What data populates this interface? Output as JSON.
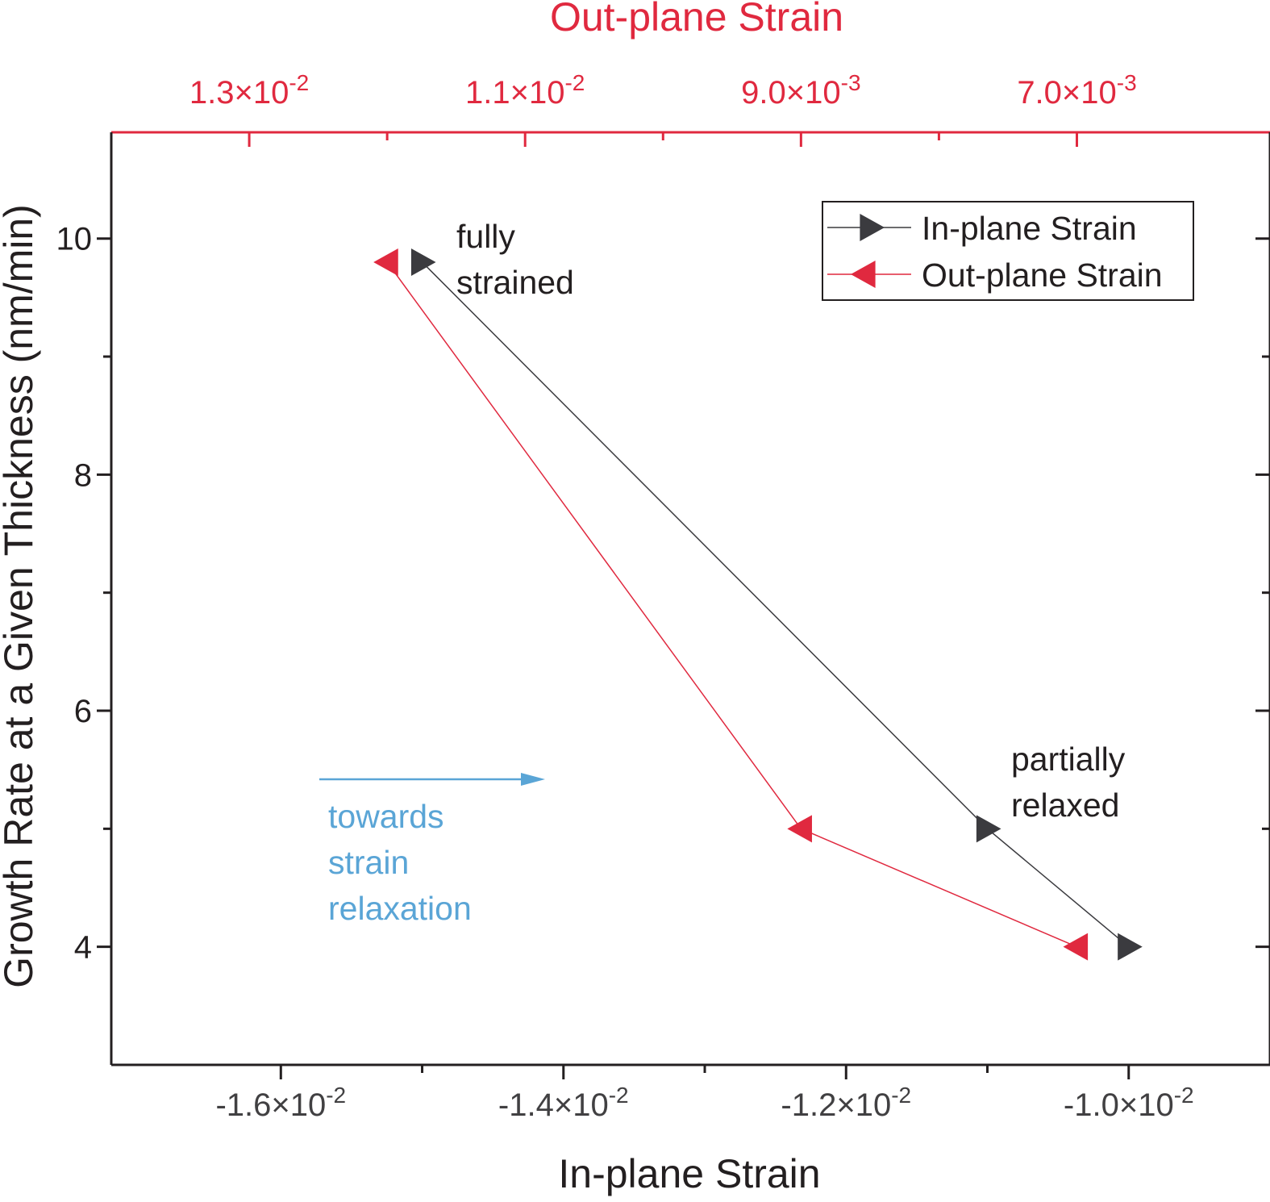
{
  "chart_data": {
    "type": "line",
    "y": {
      "label": "Growth Rate at a Given Thickness (nm/min)",
      "range": [
        3.0,
        10.9
      ],
      "ticks": [
        4,
        6,
        8,
        10
      ],
      "tick_labels": [
        "4",
        "6",
        "8",
        "10"
      ],
      "minor_ticks": [
        5,
        7,
        9
      ]
    },
    "x_bottom": {
      "label": "In-plane Strain",
      "range": [
        -0.0172,
        -0.009
      ],
      "ticks": [
        -0.016,
        -0.014,
        -0.012,
        -0.01
      ],
      "tick_mantissas": [
        "-1.6",
        "-1.4",
        "-1.2",
        "-1.0"
      ],
      "tick_exponents": [
        "-2",
        "-2",
        "-2",
        "-2"
      ],
      "minor_ticks": [
        -0.015,
        -0.013,
        -0.011
      ]
    },
    "x_top": {
      "label": "Out-plane Strain",
      "range": [
        0.014,
        0.0056
      ],
      "ticks": [
        0.013,
        0.011,
        0.009,
        0.007
      ],
      "tick_mantissas": [
        "1.3",
        "1.1",
        "9.0",
        "7.0"
      ],
      "tick_exponents": [
        "-2",
        "-2",
        "-3",
        "-3"
      ],
      "minor_ticks": [
        0.012,
        0.01,
        0.008
      ],
      "color": "#e0293f"
    },
    "series": [
      {
        "name": "In-plane Strain",
        "axis": "bottom",
        "color": "#3b3b3f",
        "marker": "triangle-right",
        "x": [
          -0.015,
          -0.011,
          -0.01
        ],
        "y": [
          9.8,
          5.0,
          4.0
        ]
      },
      {
        "name": "Out-plane Strain",
        "axis": "top",
        "color": "#e0293f",
        "marker": "triangle-left",
        "x": [
          0.012,
          0.009,
          0.007
        ],
        "y": [
          9.8,
          5.0,
          4.0
        ]
      }
    ],
    "annotations": [
      {
        "lines": [
          "fully",
          "strained"
        ],
        "color": "#231f20"
      },
      {
        "lines": [
          "partially",
          "relaxed"
        ],
        "color": "#231f20"
      },
      {
        "lines": [
          "towards",
          "strain",
          "relaxation"
        ],
        "color": "#5aa5d6"
      }
    ],
    "arrow_color": "#5aa5d6",
    "legend_position": "top-right",
    "grid": false
  }
}
